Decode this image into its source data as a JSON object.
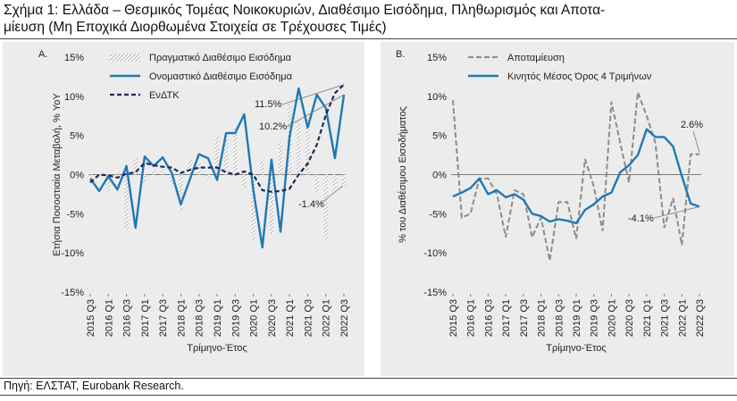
{
  "title": "Σχήμα 1: Ελλάδα – Θεσμικός Τομέας Νοικοκυριών, Διαθέσιμο Εισόδημα, Πληθωρισμός και Αποταμίευση (Μη Εποχικά Διορθωμένα Στοιχεία σε Τρέχουσες Τιμές)",
  "title_line1": "Σχήμα 1: Ελλάδα – Θεσμικός Τομέας Νοικοκυριών, Διαθέσιμο Εισόδημα, Πληθωρισμός και Αποτα-",
  "title_line2": "μίευση (Μη Εποχικά Διορθωμένα Στοιχεία σε Τρέχουσες Τιμές)",
  "source": "Πηγή: ΕΛΣΤΑΤ, Eurobank Research.",
  "colors": {
    "blue": "#1f78b4",
    "navy": "#1b2a5c",
    "gray_dash": "#8c8c8c",
    "hatch": "#9a9a9a",
    "panel_bg": "#ececec"
  },
  "chart_data": [
    {
      "panel_label": "A.",
      "type": "bar",
      "xlabel": "Τρίμηνο-Έτος",
      "ylabel": "Ετήσια Ποσοστιαία Μεταβολή, % YoY",
      "ylim": [
        -15,
        15
      ],
      "yticks": [
        "15%",
        "10%",
        "5%",
        "0%",
        "-5%",
        "-10%",
        "-15%"
      ],
      "xtick_labels": [
        "2015 Q3",
        "2016 Q1",
        "2016 Q3",
        "2017 Q1",
        "2017 Q3",
        "2018 Q1",
        "2018 Q3",
        "2019 Q1",
        "2019 Q3",
        "2020 Q1",
        "2020 Q3",
        "2021 Q1",
        "2021 Q3",
        "2022 Q1",
        "2022 Q3"
      ],
      "categories": [
        "2015 Q3",
        "2015 Q4",
        "2016 Q1",
        "2016 Q2",
        "2016 Q3",
        "2016 Q4",
        "2017 Q1",
        "2017 Q2",
        "2017 Q3",
        "2017 Q4",
        "2018 Q1",
        "2018 Q2",
        "2018 Q3",
        "2018 Q4",
        "2019 Q1",
        "2019 Q2",
        "2019 Q3",
        "2019 Q4",
        "2020 Q1",
        "2020 Q2",
        "2020 Q3",
        "2020 Q4",
        "2021 Q1",
        "2021 Q2",
        "2021 Q3",
        "2021 Q4",
        "2022 Q1",
        "2022 Q2",
        "2022 Q3"
      ],
      "series": [
        {
          "name": "Πραγματικό Διαθέσιμο Εισόδημα",
          "type": "bar",
          "values": [
            -0.6,
            -0.1,
            -2.2,
            0.3,
            -7.0,
            2.2,
            -1.0,
            0.6,
            1.1,
            -1.2,
            -4.5,
            1.8,
            1.5,
            -0.6,
            4.8,
            4.6,
            6.2,
            -1.7,
            -8.5,
            1.7,
            -7.5,
            4.0,
            9.0,
            6.8,
            7.0,
            -2.4,
            -8.2,
            -1.9,
            -1.4
          ]
        },
        {
          "name": "Ονομαστικό Διαθέσιμο Εισόδημα",
          "type": "line",
          "values": [
            -0.5,
            -2.1,
            -0.2,
            -1.9,
            1.1,
            -6.8,
            2.3,
            1.1,
            2.2,
            0.2,
            -3.8,
            -0.6,
            2.6,
            2.1,
            -0.7,
            5.3,
            5.3,
            7.7,
            -2.0,
            -9.3,
            1.9,
            -7.3,
            4.8,
            11.0,
            6.0,
            10.2,
            8.5,
            2.1,
            10.2
          ]
        },
        {
          "name": "ΕνΔΤΚ",
          "type": "line",
          "values": [
            -1.0,
            0.0,
            -0.1,
            -0.4,
            0.1,
            0.3,
            1.5,
            1.2,
            1.0,
            0.9,
            0.2,
            0.6,
            0.9,
            0.9,
            0.9,
            0.3,
            0.0,
            0.4,
            0.0,
            -2.0,
            -2.2,
            -2.1,
            -1.8,
            0.0,
            1.4,
            3.8,
            7.6,
            10.4,
            11.5
          ]
        }
      ],
      "annotations": [
        "11.5%",
        "10.2%",
        "-1.4%"
      ]
    },
    {
      "panel_label": "B.",
      "type": "line",
      "xlabel": "Τρίμηνο-Έτος",
      "ylabel": "% του Διαθέσιμου Εισοδήματος",
      "ylim": [
        -15,
        15
      ],
      "yticks": [
        "15%",
        "10%",
        "5%",
        "0%",
        "-5%",
        "-10%",
        "-15%"
      ],
      "xtick_labels": [
        "2015 Q3",
        "2016 Q1",
        "2016 Q3",
        "2017 Q1",
        "2017 Q3",
        "2018 Q1",
        "2018 Q3",
        "2019 Q1",
        "2019 Q3",
        "2020 Q1",
        "2020 Q3",
        "2021 Q1",
        "2021 Q3",
        "2022 Q1",
        "2022 Q3"
      ],
      "categories": [
        "2015 Q3",
        "2015 Q4",
        "2016 Q1",
        "2016 Q2",
        "2016 Q3",
        "2016 Q4",
        "2017 Q1",
        "2017 Q2",
        "2017 Q3",
        "2017 Q4",
        "2018 Q1",
        "2018 Q2",
        "2018 Q3",
        "2018 Q4",
        "2019 Q1",
        "2019 Q2",
        "2019 Q3",
        "2019 Q4",
        "2020 Q1",
        "2020 Q2",
        "2020 Q3",
        "2020 Q4",
        "2021 Q1",
        "2021 Q2",
        "2021 Q3",
        "2021 Q4",
        "2022 Q1",
        "2022 Q2",
        "2022 Q3"
      ],
      "series": [
        {
          "name": "Αποταμίευση",
          "type": "line",
          "values": [
            9.5,
            -5.5,
            -5.0,
            -0.5,
            -0.5,
            -2.5,
            -8.0,
            -2.0,
            -2.5,
            -8.0,
            -5.5,
            -11.0,
            -3.5,
            -3.5,
            -8.2,
            2.0,
            -1.5,
            -7.2,
            9.3,
            4.0,
            -1.0,
            10.5,
            7.5,
            4.0,
            -6.8,
            -3.0,
            -9.0,
            2.6,
            2.6
          ]
        },
        {
          "name": "Κινητός Μέσος Όρος 4 Τριμήνων",
          "type": "line",
          "values": [
            -2.8,
            -2.3,
            -1.7,
            -0.5,
            -2.5,
            -2.0,
            -2.9,
            -2.5,
            -3.2,
            -5.0,
            -5.3,
            -6.0,
            -5.7,
            -5.9,
            -6.2,
            -4.5,
            -3.8,
            -2.8,
            -2.3,
            0.3,
            1.2,
            2.5,
            5.8,
            4.8,
            4.8,
            3.6,
            -0.2,
            -3.7,
            -4.1
          ]
        }
      ],
      "annotations": [
        "2.6%",
        "-4.1%"
      ]
    }
  ]
}
